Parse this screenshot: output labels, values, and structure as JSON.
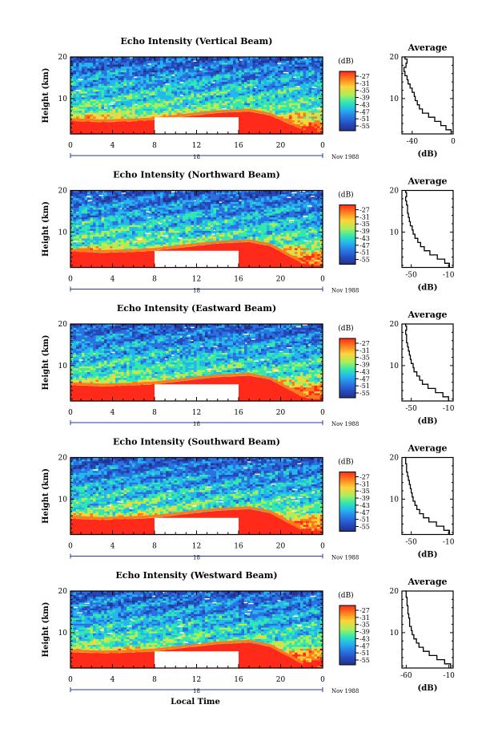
{
  "chart_data": {
    "type": "heatmap",
    "x_axis_title": "Local Time",
    "date_label": "Nov 1988",
    "day_label": "18",
    "x_ticks": [
      "0",
      "4",
      "8",
      "12",
      "16",
      "20",
      "0"
    ],
    "y_label": "Height (km)",
    "y_ticks": [
      "20",
      "10"
    ],
    "xlim_hours": [
      0,
      24
    ],
    "ylim_km": [
      1.5,
      20
    ],
    "no_data_gap_hours": [
      8,
      16
    ],
    "no_data_gap_height_km": [
      1.5,
      5.5
    ],
    "colorbar": {
      "unit": "(dB)",
      "levels": [
        "-27",
        "-31",
        "-35",
        "-39",
        "-43",
        "-47",
        "-51",
        "-55"
      ],
      "colors": [
        "#ff2a1a",
        "#ff7a1c",
        "#ffd33a",
        "#a9ef5b",
        "#33e8ae",
        "#25b6ee",
        "#2a72e2",
        "#2448b8",
        "#23328b"
      ]
    },
    "average_profile": {
      "title": "Average",
      "xlabel": "(dB)",
      "y_ticks": [
        "20",
        "10"
      ]
    },
    "panels": [
      {
        "title": "Echo Intensity (Vertical Beam)",
        "x_ticks": [
          "-40",
          "0"
        ],
        "xlim_db": [
          -50,
          0
        ],
        "profile_db": [
          -2,
          -7,
          -12,
          -18,
          -24,
          -30,
          -33,
          -35,
          -37,
          -38,
          -40,
          -42,
          -44,
          -45,
          -47,
          -48,
          -46,
          -45,
          -47,
          -46
        ],
        "profile_km": [
          1.5,
          2.5,
          3.5,
          4.5,
          5.5,
          6.5,
          7.5,
          8.5,
          9.5,
          10.5,
          11.5,
          12.5,
          13.5,
          14.5,
          15.5,
          16.5,
          17.5,
          18.5,
          19.5,
          20
        ]
      },
      {
        "title": "Echo Intensity (Northward Beam)",
        "x_ticks": [
          "-50",
          "-10"
        ],
        "xlim_db": [
          -60,
          -5
        ],
        "profile_db": [
          -9,
          -14,
          -22,
          -30,
          -36,
          -40,
          -43,
          -46,
          -48,
          -49,
          -51,
          -52,
          -53,
          -54,
          -54,
          -55,
          -56,
          -55,
          -56,
          -56
        ],
        "profile_km": [
          1.5,
          2.5,
          3.5,
          4.5,
          5.5,
          6.5,
          7.5,
          8.5,
          9.5,
          10.5,
          11.5,
          12.5,
          13.5,
          14.5,
          15.5,
          16.5,
          17.5,
          18.5,
          19.5,
          20
        ]
      },
      {
        "title": "Echo Intensity (Eastward Beam)",
        "x_ticks": [
          "-50",
          "-10"
        ],
        "xlim_db": [
          -60,
          -5
        ],
        "profile_db": [
          -10,
          -16,
          -24,
          -32,
          -38,
          -41,
          -44,
          -47,
          -48,
          -50,
          -51,
          -52,
          -53,
          -54,
          -55,
          -55,
          -56,
          -55,
          -56,
          -57
        ],
        "profile_km": [
          1.5,
          2.5,
          3.5,
          4.5,
          5.5,
          6.5,
          7.5,
          8.5,
          9.5,
          10.5,
          11.5,
          12.5,
          13.5,
          14.5,
          15.5,
          16.5,
          17.5,
          18.5,
          19.5,
          20
        ]
      },
      {
        "title": "Echo Intensity (Southward Beam)",
        "x_ticks": [
          "-50",
          "-10"
        ],
        "xlim_db": [
          -60,
          -5
        ],
        "profile_db": [
          -9,
          -15,
          -23,
          -31,
          -37,
          -41,
          -44,
          -46,
          -48,
          -49,
          -50,
          -51,
          -52,
          -53,
          -54,
          -55,
          -55,
          -56,
          -56,
          -57
        ],
        "profile_km": [
          1.5,
          2.5,
          3.5,
          4.5,
          5.5,
          6.5,
          7.5,
          8.5,
          9.5,
          10.5,
          11.5,
          12.5,
          13.5,
          14.5,
          15.5,
          16.5,
          17.5,
          18.5,
          19.5,
          20
        ]
      },
      {
        "title": "Echo Intensity (Westward Beam)",
        "x_ticks": [
          "-60",
          "-10"
        ],
        "xlim_db": [
          -65,
          -5
        ],
        "profile_db": [
          -8,
          -15,
          -24,
          -33,
          -40,
          -45,
          -48,
          -51,
          -53,
          -54,
          -56,
          -56,
          -57,
          -58,
          -58,
          -59,
          -59,
          -60,
          -60,
          -61
        ],
        "profile_km": [
          1.5,
          2.5,
          3.5,
          4.5,
          5.5,
          6.5,
          7.5,
          8.5,
          9.5,
          10.5,
          11.5,
          12.5,
          13.5,
          14.5,
          15.5,
          16.5,
          17.5,
          18.5,
          19.5,
          20
        ]
      }
    ]
  }
}
